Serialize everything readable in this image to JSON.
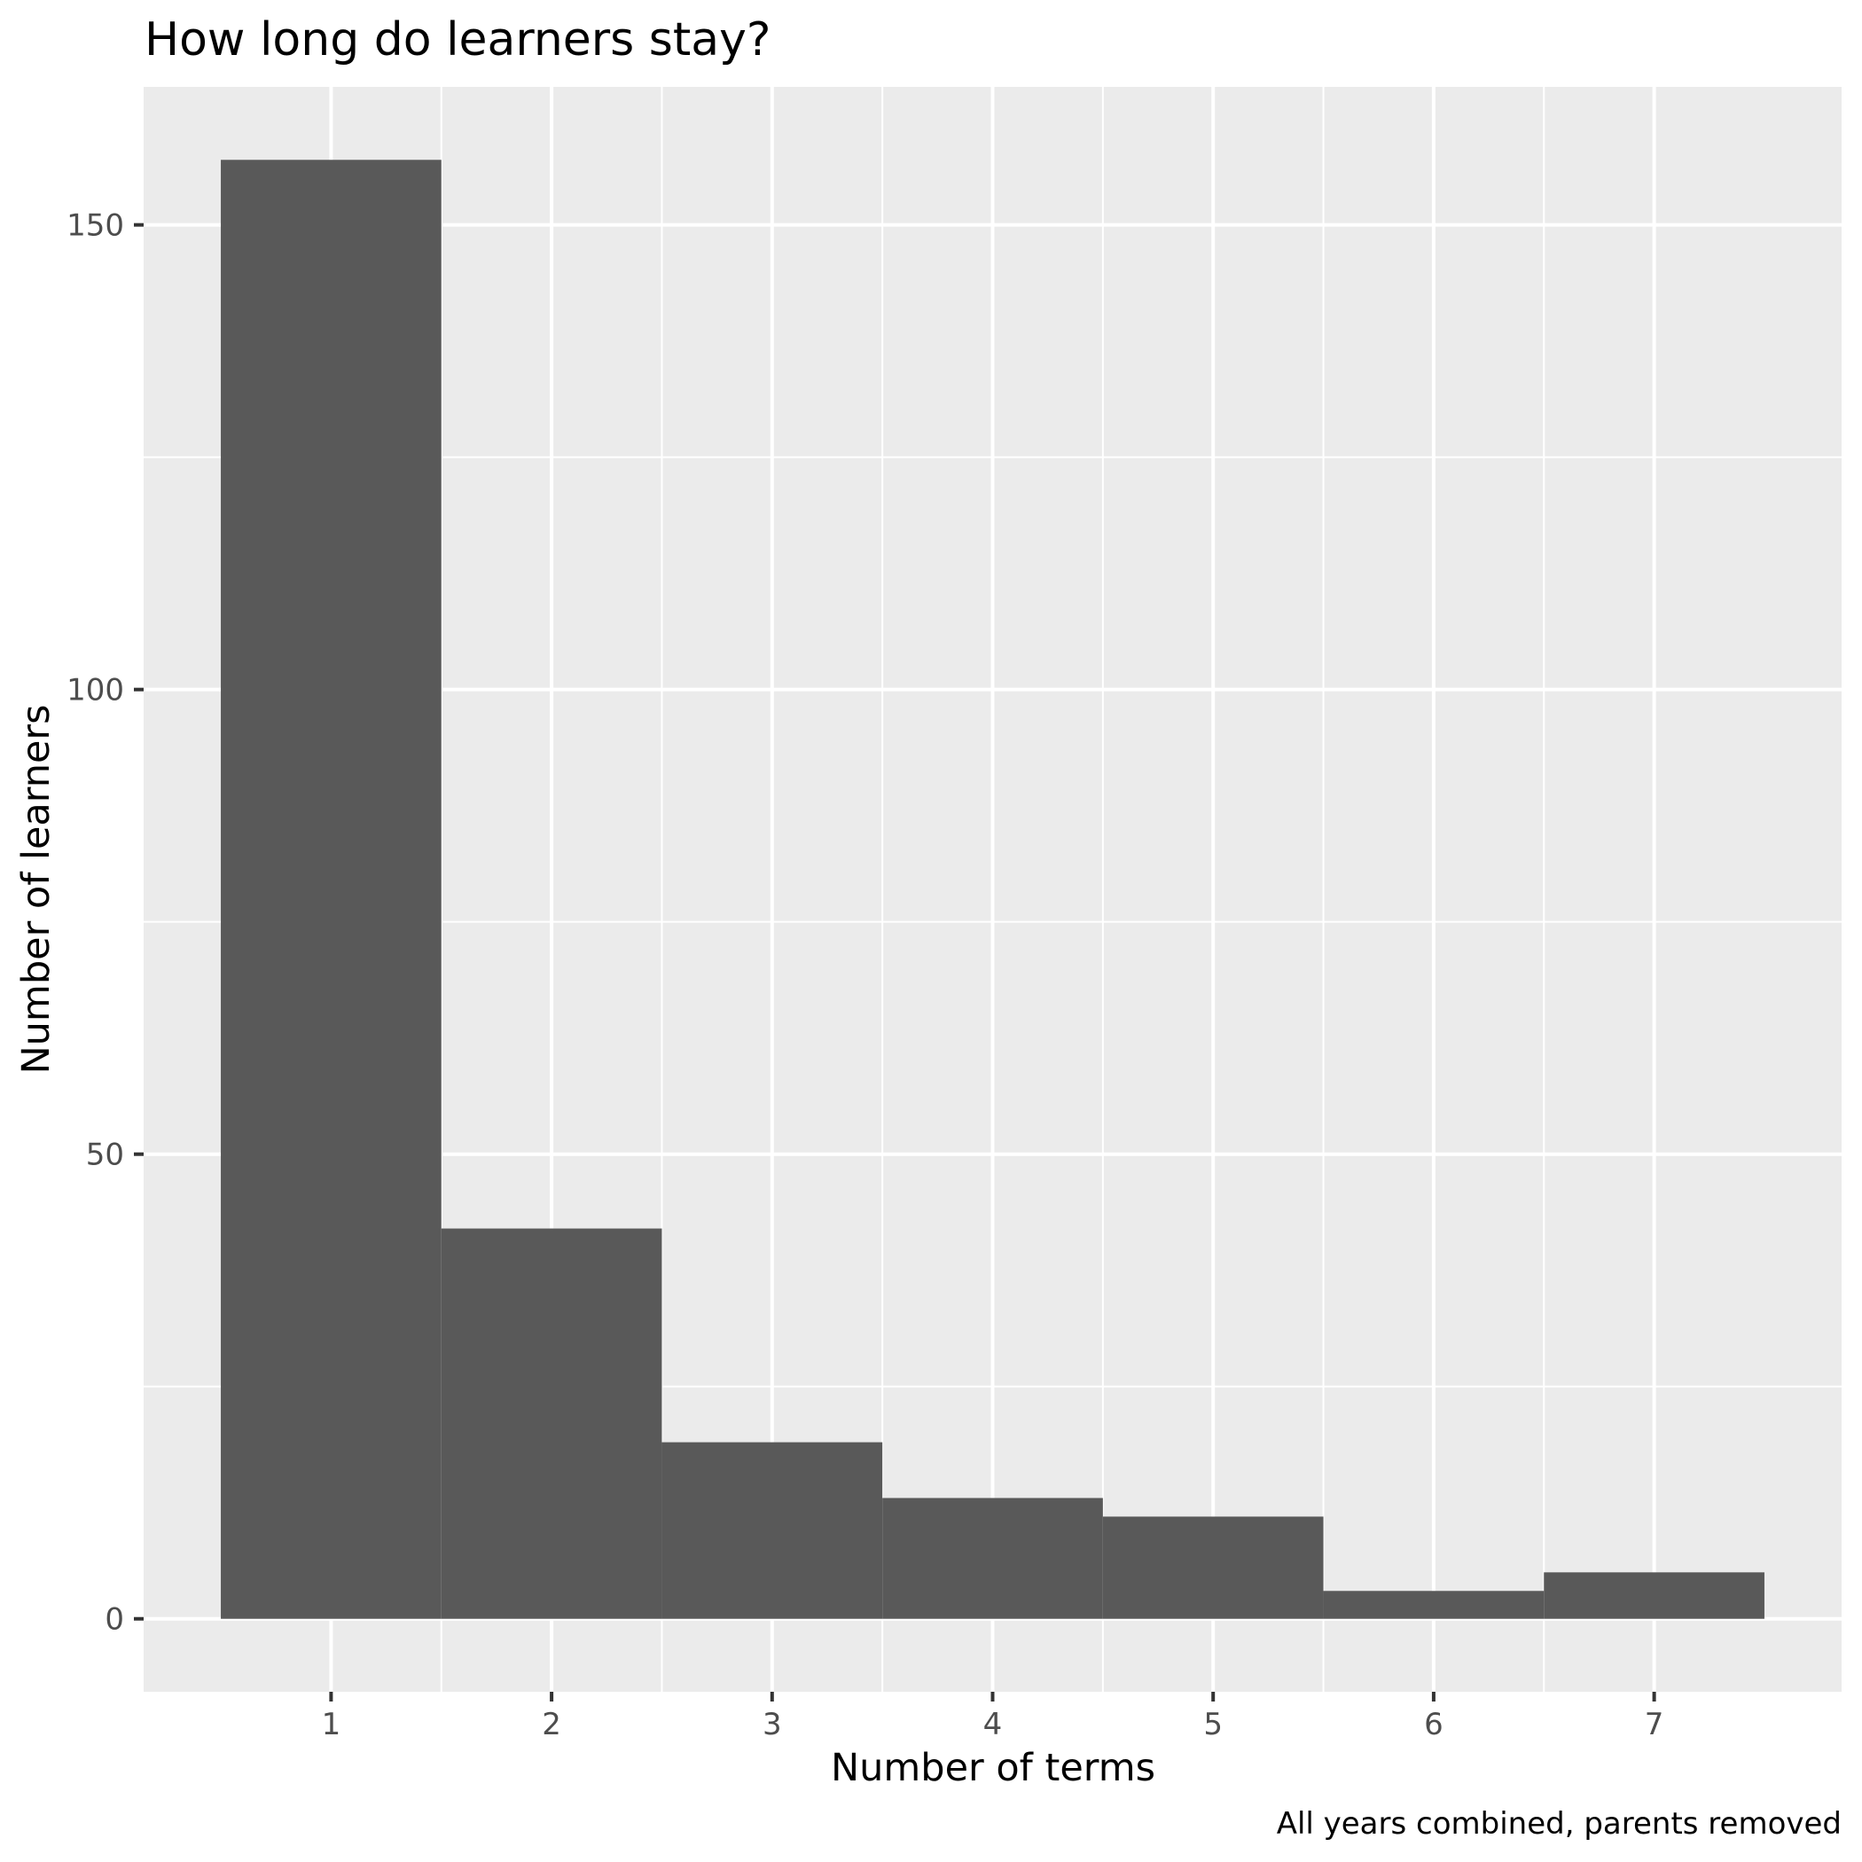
{
  "chart_data": {
    "type": "bar",
    "subtype": "histogram",
    "title": "How long do learners stay?",
    "xlabel": "Number of terms",
    "ylabel": "Number of learners",
    "caption": "All years combined, parents removed",
    "categories": [
      "1",
      "2",
      "3",
      "4",
      "5",
      "6",
      "7"
    ],
    "x": [
      1,
      2,
      3,
      4,
      5,
      6,
      7
    ],
    "values": [
      157,
      42,
      19,
      13,
      11,
      3,
      5
    ],
    "bin_width": 1,
    "xlim": [
      0.15,
      7.85
    ],
    "ylim": [
      -7.85,
      164.85
    ],
    "x_ticks": [
      1,
      2,
      3,
      4,
      5,
      6,
      7
    ],
    "y_ticks": [
      0,
      50,
      100,
      150
    ],
    "y_minor_ticks": [
      25,
      75,
      125
    ],
    "x_minor_ticks": [
      1.5,
      2.5,
      3.5,
      4.5,
      5.5,
      6.5
    ],
    "grid": true,
    "legend": "none",
    "colors": {
      "bar_fill": "#595959",
      "panel_background": "#EBEBEB",
      "grid": "#FFFFFF",
      "tick_text": "#4D4D4D",
      "tick_mark": "#333333",
      "text": "#000000"
    }
  }
}
